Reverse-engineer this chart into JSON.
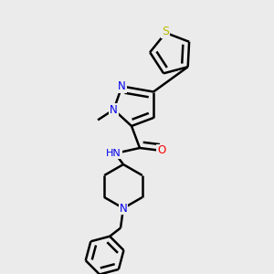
{
  "background_color": "#ebebeb",
  "atom_colors": {
    "C": "#000000",
    "N": "#0000ee",
    "O": "#ff0000",
    "S": "#bbbb00",
    "H": "#000000"
  },
  "bond_color": "#000000",
  "bond_width": 1.8,
  "font_size": 8.5
}
